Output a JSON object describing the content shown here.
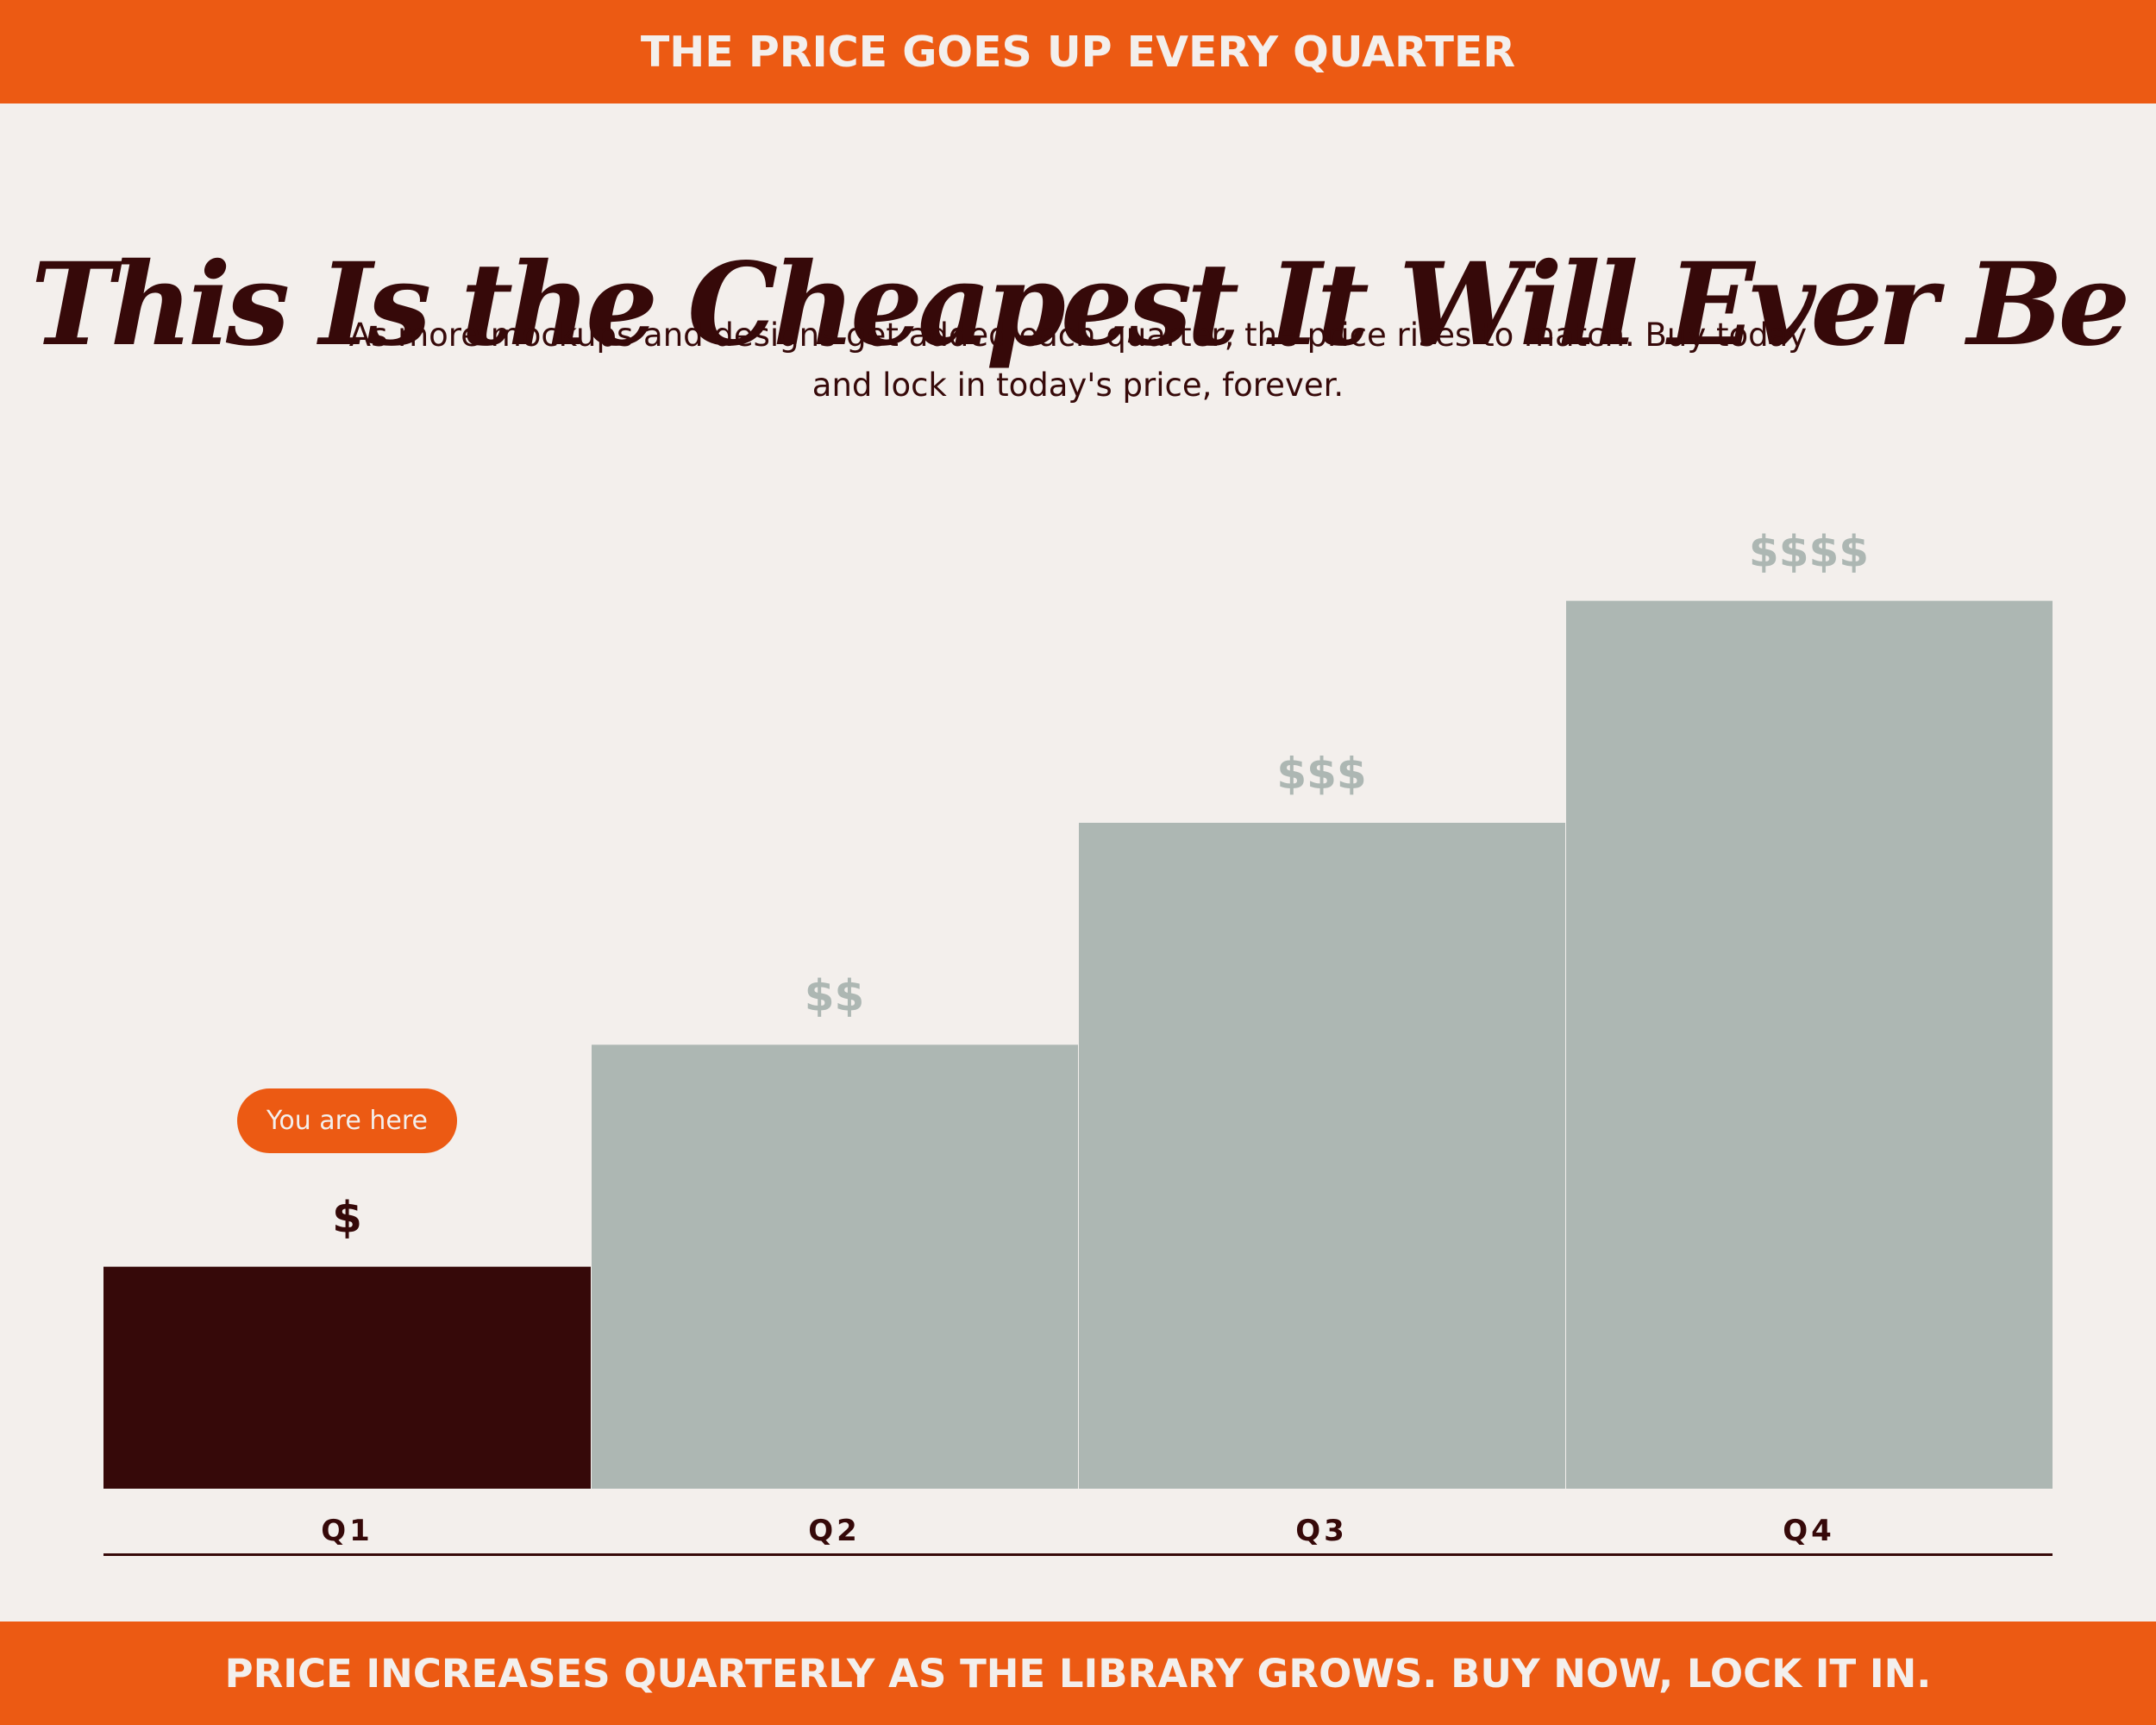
{
  "top_banner": "THE PRICE GOES UP EVERY QUARTER",
  "headline": "This Is the Cheapest It Will Ever Be",
  "subtitle": "As more mockups and designs get added each quarter, the price rises to match. Buy today and lock in today's price, forever.",
  "current_marker": "You are here",
  "bottom_banner": "PRICE INCREASES QUARTERLY AS THE LIBRARY GROWS. BUY NOW, LOCK IT IN.",
  "colors": {
    "accent": "#EC5A13",
    "current_bar": "#360909",
    "future_bar": "#ADB7B3",
    "background": "#F3EFEC",
    "text": "#360909"
  },
  "chart_data": {
    "type": "bar",
    "categories": [
      "Q1",
      "Q2",
      "Q3",
      "Q4"
    ],
    "values": [
      1,
      2,
      3,
      4
    ],
    "data_labels": [
      "$",
      "$$",
      "$$$",
      "$$$$"
    ],
    "current_index": 0,
    "ylim": [
      0,
      4.22
    ],
    "grid": false,
    "title": "",
    "xlabel": "",
    "ylabel": ""
  }
}
